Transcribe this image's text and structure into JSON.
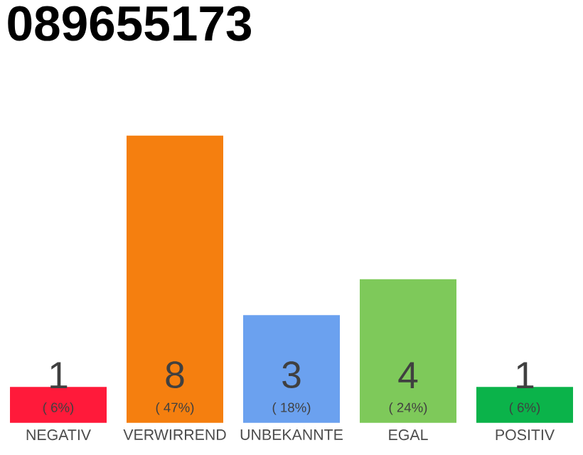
{
  "chart_data": {
    "type": "bar",
    "title": "089655173",
    "categories": [
      "NEGATIV",
      "VERWIRREND",
      "UNBEKANNTE",
      "EGAL",
      "POSITIV"
    ],
    "values": [
      1,
      8,
      3,
      4,
      1
    ],
    "colors": [
      "#ff1a3a",
      "#f57f0f",
      "#6ba1ef",
      "#7ec95a",
      "#0bb34a"
    ],
    "data_labels": true,
    "annotations": [
      "( 6%)",
      "( 47%)",
      "( 18%)",
      "( 24%)",
      "( 6%)"
    ]
  }
}
